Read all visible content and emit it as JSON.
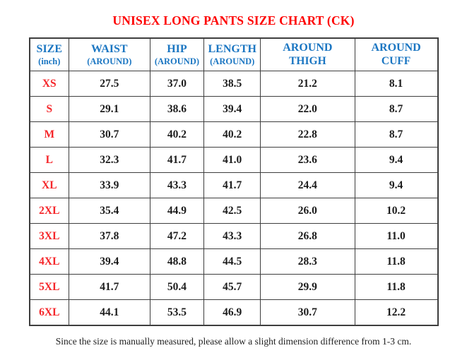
{
  "page": {
    "title": "UNISEX LONG PANTS SIZE CHART (CK)",
    "footnote": "Since the size is manually measured, please allow a slight dimension difference from 1-3 cm."
  },
  "colors": {
    "title_red": "#fe0000",
    "size_label_red": "#f5262a",
    "header_blue": "#1b76c2",
    "value_black": "#1c1c1c",
    "border_gray": "#3e3e3e"
  },
  "chart_data": {
    "type": "table",
    "title": "UNISEX LONG PANTS SIZE CHART (CK)",
    "columns": [
      {
        "key": "size",
        "line1": "SIZE",
        "line2": "(inch)"
      },
      {
        "key": "waist",
        "line1": "WAIST",
        "line2": "(AROUND)"
      },
      {
        "key": "hip",
        "line1": "HIP",
        "line2": "(AROUND)"
      },
      {
        "key": "length",
        "line1": "LENGTH",
        "line2": "(AROUND)"
      },
      {
        "key": "around-thigh",
        "line1": "AROUND",
        "line2": "THIGH"
      },
      {
        "key": "around-cuff",
        "line1": "AROUND",
        "line2": "CUFF"
      }
    ],
    "rows": [
      {
        "size": "XS",
        "values": [
          "27.5",
          "37.0",
          "38.5",
          "21.2",
          "8.1"
        ]
      },
      {
        "size": "S",
        "values": [
          "29.1",
          "38.6",
          "39.4",
          "22.0",
          "8.7"
        ]
      },
      {
        "size": "M",
        "values": [
          "30.7",
          "40.2",
          "40.2",
          "22.8",
          "8.7"
        ]
      },
      {
        "size": "L",
        "values": [
          "32.3",
          "41.7",
          "41.0",
          "23.6",
          "9.4"
        ]
      },
      {
        "size": "XL",
        "values": [
          "33.9",
          "43.3",
          "41.7",
          "24.4",
          "9.4"
        ]
      },
      {
        "size": "2XL",
        "values": [
          "35.4",
          "44.9",
          "42.5",
          "26.0",
          "10.2"
        ]
      },
      {
        "size": "3XL",
        "values": [
          "37.8",
          "47.2",
          "43.3",
          "26.8",
          "11.0"
        ]
      },
      {
        "size": "4XL",
        "values": [
          "39.4",
          "48.8",
          "44.5",
          "28.3",
          "11.8"
        ]
      },
      {
        "size": "5XL",
        "values": [
          "41.7",
          "50.4",
          "45.7",
          "29.9",
          "11.8"
        ]
      },
      {
        "size": "6XL",
        "values": [
          "44.1",
          "53.5",
          "46.9",
          "30.7",
          "12.2"
        ]
      }
    ],
    "footnote": "Since the size is manually measured, please allow a slight dimension difference from 1-3 cm."
  }
}
